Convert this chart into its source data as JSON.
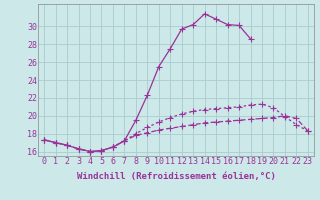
{
  "x_values": [
    0,
    1,
    2,
    3,
    4,
    5,
    6,
    7,
    8,
    9,
    10,
    11,
    12,
    13,
    14,
    15,
    16,
    17,
    18,
    19,
    20,
    21,
    22,
    23
  ],
  "line1": [
    17.3,
    17.0,
    16.7,
    16.3,
    16.0,
    16.1,
    16.5,
    17.2,
    19.5,
    22.3,
    25.5,
    27.5,
    29.7,
    30.2,
    31.4,
    30.8,
    30.2,
    30.1,
    28.6,
    null,
    null,
    null,
    null,
    null
  ],
  "line2": [
    17.3,
    17.0,
    16.7,
    16.3,
    16.0,
    16.1,
    16.5,
    17.2,
    18.0,
    18.7,
    19.3,
    19.8,
    20.2,
    20.5,
    20.7,
    20.8,
    20.9,
    21.0,
    21.2,
    21.3,
    20.9,
    19.9,
    19.0,
    18.3
  ],
  "line3": [
    17.3,
    17.0,
    16.7,
    16.3,
    16.0,
    16.1,
    16.5,
    17.2,
    17.8,
    18.1,
    18.4,
    18.6,
    18.8,
    19.0,
    19.2,
    19.3,
    19.4,
    19.5,
    19.6,
    19.7,
    19.8,
    20.0,
    19.7,
    18.3
  ],
  "color": "#993399",
  "bg_color": "#cce8e8",
  "grid_color": "#aacccc",
  "xlabel": "Windchill (Refroidissement éolien,°C)",
  "xlabel_fontsize": 6.5,
  "tick_fontsize": 6,
  "ylim": [
    15.5,
    32.5
  ],
  "xlim": [
    -0.5,
    23.5
  ],
  "yticks": [
    16,
    18,
    20,
    22,
    24,
    26,
    28,
    30
  ],
  "xticks": [
    0,
    1,
    2,
    3,
    4,
    5,
    6,
    7,
    8,
    9,
    10,
    11,
    12,
    13,
    14,
    15,
    16,
    17,
    18,
    19,
    20,
    21,
    22,
    23
  ]
}
